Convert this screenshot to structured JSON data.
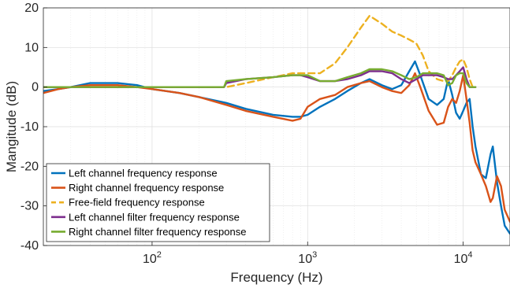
{
  "chart_data": {
    "type": "line",
    "title": "",
    "xlabel": "Frequency (Hz)",
    "ylabel": "Mangitude (dB)",
    "xscale": "log",
    "xlim": [
      20,
      20000
    ],
    "ylim": [
      -40,
      20
    ],
    "grid": true,
    "legend_position": "bottom-left",
    "x_tick_labels": [
      {
        "value": 100,
        "base": "10",
        "exp": "2"
      },
      {
        "value": 1000,
        "base": "10",
        "exp": "3"
      },
      {
        "value": 10000,
        "base": "10",
        "exp": "4"
      }
    ],
    "y_ticks": [
      20,
      10,
      0,
      -10,
      -20,
      -30,
      -40
    ],
    "series": [
      {
        "name": "Left channel frequency response",
        "color": "#0072BD",
        "dash": "solid",
        "x": [
          20,
          25,
          30,
          40,
          60,
          80,
          100,
          150,
          200,
          300,
          400,
          600,
          800,
          900,
          1000,
          1200,
          1500,
          1800,
          2200,
          2500,
          3000,
          3500,
          4000,
          4500,
          4900,
          5300,
          6000,
          6800,
          7500,
          8000,
          8500,
          9000,
          9500,
          10000,
          10500,
          11000,
          11500,
          12000,
          13000,
          14000,
          15000,
          15500,
          16500,
          17500,
          18500,
          20000
        ],
        "y": [
          -1,
          -0.5,
          0,
          1,
          1,
          0.5,
          -0.5,
          -1.5,
          -2.5,
          -4,
          -5.5,
          -7,
          -7.5,
          -7.5,
          -7,
          -5,
          -3,
          -1,
          1,
          2,
          0.5,
          -0.5,
          0.5,
          4,
          6.5,
          3,
          -3,
          -4.5,
          -3,
          2,
          -2,
          -6.5,
          -8,
          -6,
          -4,
          -3,
          -10,
          -15,
          -22,
          -23,
          -17,
          -15,
          -24,
          -30,
          -35,
          -37
        ]
      },
      {
        "name": "Right channel frequency response",
        "color": "#D95319",
        "dash": "solid",
        "x": [
          20,
          25,
          30,
          40,
          60,
          80,
          100,
          150,
          200,
          300,
          400,
          600,
          800,
          900,
          1000,
          1200,
          1500,
          1800,
          2200,
          2500,
          3000,
          3500,
          4000,
          4500,
          4900,
          5300,
          6000,
          6800,
          7500,
          8000,
          8500,
          9000,
          9500,
          10000,
          10500,
          11000,
          11500,
          12000,
          13000,
          14000,
          15000,
          15500,
          16500,
          17500,
          18500,
          20000
        ],
        "y": [
          -1.5,
          -0.5,
          0,
          0.5,
          0.5,
          0,
          -0.5,
          -1.5,
          -2.5,
          -4.5,
          -6,
          -7.5,
          -8.5,
          -8,
          -5,
          -3,
          -2,
          0,
          1,
          1.5,
          0,
          -1,
          -1.5,
          0.5,
          3.5,
          0,
          -6,
          -9.5,
          -9,
          -5,
          -3,
          -4,
          -1,
          3,
          -3,
          -9,
          -16,
          -19,
          -22,
          -25,
          -29,
          -28,
          -22.5,
          -25,
          -31,
          -34
        ]
      },
      {
        "name": "Free-field frequency response",
        "color": "#EDB120",
        "dash": "dashed",
        "x": [
          20,
          100,
          300,
          400,
          600,
          800,
          900,
          1000,
          1200,
          1500,
          1800,
          2200,
          2500,
          3000,
          3500,
          4000,
          4500,
          5000,
          5500,
          6000,
          6800,
          7500,
          8000,
          8500,
          9000,
          9500,
          10000,
          10500,
          11000,
          11500,
          12000
        ],
        "y": [
          0,
          0,
          0,
          1,
          2.5,
          3.5,
          3.5,
          3.5,
          3.5,
          6,
          10,
          15,
          18,
          16,
          14,
          13,
          12,
          11,
          8,
          4,
          2,
          1.5,
          1.5,
          3,
          5,
          6.5,
          7,
          5,
          2,
          0,
          0
        ]
      },
      {
        "name": "Left channel filter frequency response",
        "color": "#7E2F8E",
        "dash": "solid",
        "x": [
          20,
          100,
          200,
          290,
          300,
          400,
          600,
          800,
          900,
          1000,
          1200,
          1500,
          1800,
          2200,
          2500,
          3000,
          3500,
          4000,
          4500,
          5000,
          5500,
          6000,
          6800,
          7500,
          8000,
          8500,
          9000,
          9500,
          10000,
          10500,
          11000,
          11500,
          12000
        ],
        "y": [
          0,
          0,
          0,
          0,
          1,
          2,
          2.5,
          3,
          3,
          2.5,
          1.5,
          1.5,
          2,
          3,
          4,
          4,
          3.5,
          2,
          1,
          2,
          3,
          3,
          3,
          2.5,
          2,
          2,
          3,
          4,
          5,
          2,
          0,
          0,
          0
        ]
      },
      {
        "name": "Right channel filter frequency response",
        "color": "#77AC30",
        "dash": "solid",
        "x": [
          20,
          100,
          200,
          290,
          300,
          400,
          600,
          800,
          900,
          1000,
          1200,
          1500,
          1800,
          2200,
          2500,
          3000,
          3500,
          4000,
          4500,
          5000,
          5500,
          6000,
          6800,
          7500,
          8000,
          8500,
          9000,
          9500,
          10000,
          10500,
          11000,
          11500,
          12000
        ],
        "y": [
          0,
          0,
          0,
          0,
          1.5,
          2,
          2.5,
          3,
          3,
          3,
          1.5,
          1.5,
          2.5,
          3.5,
          4.5,
          4.5,
          4,
          3,
          2,
          2.5,
          3.5,
          3.5,
          3.5,
          3,
          0.5,
          1,
          3,
          3.5,
          3.5,
          1,
          0,
          0,
          0
        ]
      }
    ]
  }
}
